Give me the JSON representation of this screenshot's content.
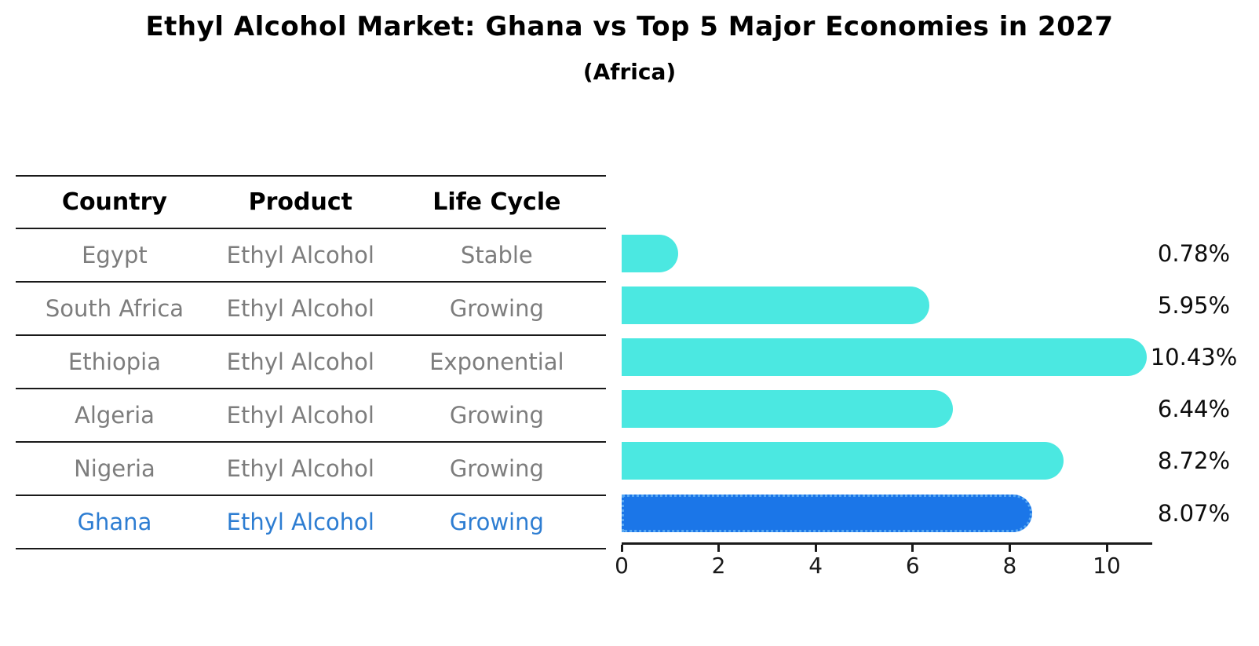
{
  "title": "Ethyl Alcohol Market: Ghana vs Top 5 Major Economies in 2027",
  "subtitle": "(Africa)",
  "table": {
    "headers": [
      "Country",
      "Product",
      "Life Cycle"
    ],
    "rows": [
      {
        "country": "Egypt",
        "product": "Ethyl Alcohol",
        "life_cycle": "Stable",
        "highlight": false
      },
      {
        "country": "South Africa",
        "product": "Ethyl Alcohol",
        "life_cycle": "Growing",
        "highlight": false
      },
      {
        "country": "Ethiopia",
        "product": "Ethyl Alcohol",
        "life_cycle": "Exponential",
        "highlight": false
      },
      {
        "country": "Algeria",
        "product": "Ethyl Alcohol",
        "life_cycle": "Growing",
        "highlight": false
      },
      {
        "country": "Nigeria",
        "product": "Ethyl Alcohol",
        "life_cycle": "Growing",
        "highlight": false
      },
      {
        "country": "Ghana",
        "product": "Ethyl Alcohol",
        "life_cycle": "Growing",
        "highlight": true
      }
    ]
  },
  "chart_data": {
    "type": "bar",
    "orientation": "horizontal",
    "title": "Ethyl Alcohol Market: Ghana vs Top 5 Major Economies in 2027",
    "subtitle": "(Africa)",
    "categories": [
      "Egypt",
      "South Africa",
      "Ethiopia",
      "Algeria",
      "Nigeria",
      "Ghana"
    ],
    "values": [
      0.78,
      5.95,
      10.43,
      6.44,
      8.72,
      8.07
    ],
    "value_labels": [
      "0.78%",
      "5.95%",
      "10.43%",
      "6.44%",
      "8.72%",
      "8.07%"
    ],
    "highlight_index": 5,
    "x_ticks": [
      0,
      2,
      4,
      6,
      8,
      10
    ],
    "xlim": [
      0,
      10.92
    ],
    "grid": false,
    "legend": "none",
    "xlabel": "",
    "ylabel": ""
  },
  "colors": {
    "bar": "#4be8e1",
    "highlight_bar": "#1b76e8",
    "highlight_border": "#57a7f2",
    "highlight_text": "#2d7dd2",
    "row_text": "#7d7d7d",
    "header_text": "#000000",
    "axis": "#1a1a1a"
  }
}
